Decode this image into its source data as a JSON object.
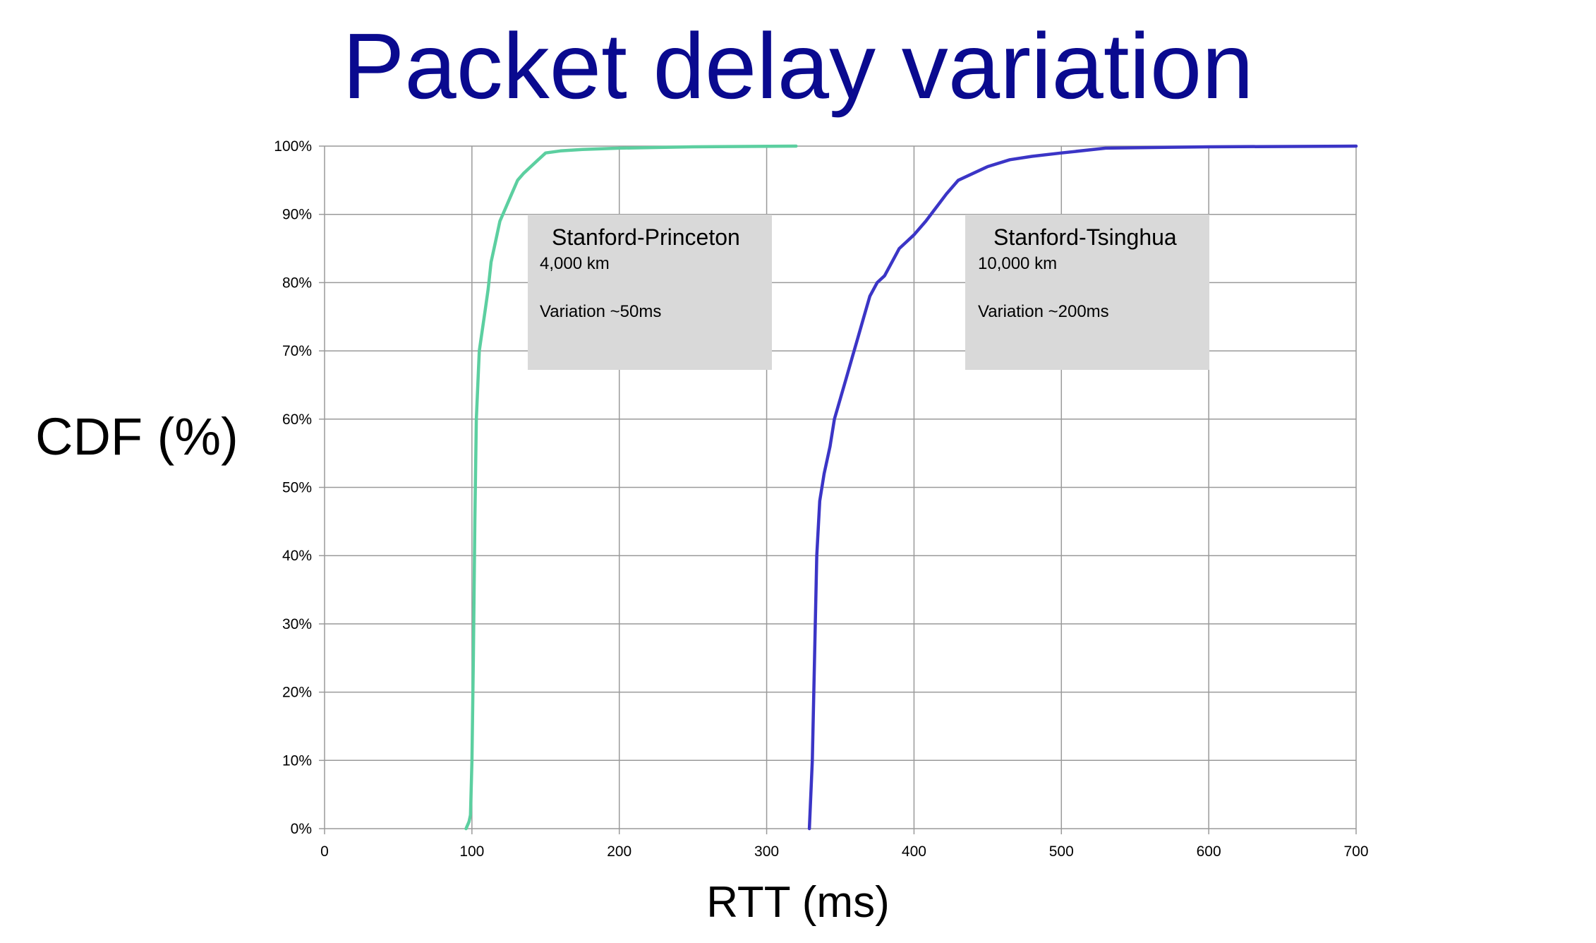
{
  "slide": {
    "title": "Packet delay variation",
    "ylabel": "CDF (%)",
    "xlabel": "RTT (ms)"
  },
  "colors": {
    "title": "#0a0a8f",
    "series1": "#5ccfa0",
    "series2": "#3b35c6",
    "grid": "#9a9a9a",
    "box": "#d9d9d9"
  },
  "annotations": [
    {
      "title": "Stanford-Princeton",
      "line1": "4,000 km",
      "line2": "Variation ~50ms"
    },
    {
      "title": "Stanford-Tsinghua",
      "line1": "10,000 km",
      "line2": "Variation ~200ms"
    }
  ],
  "chart_data": {
    "type": "line",
    "title": "Packet delay variation",
    "xlabel": "RTT (ms)",
    "ylabel": "CDF (%)",
    "xlim": [
      0,
      700
    ],
    "ylim": [
      0,
      100
    ],
    "x_ticks": [
      "0",
      "100",
      "200",
      "300",
      "400",
      "500",
      "600",
      "700"
    ],
    "y_ticks": [
      "0%",
      "10%",
      "20%",
      "30%",
      "40%",
      "50%",
      "60%",
      "70%",
      "80%",
      "90%",
      "100%"
    ],
    "grid": true,
    "series": [
      {
        "points": [
          [
            96,
            0
          ],
          [
            98,
            1
          ],
          [
            99,
            2
          ],
          [
            100,
            10
          ],
          [
            101,
            25
          ],
          [
            102,
            45
          ],
          [
            103,
            60
          ],
          [
            104,
            65
          ],
          [
            105,
            70
          ],
          [
            107,
            73
          ],
          [
            109,
            76
          ],
          [
            111,
            79
          ],
          [
            113,
            83
          ],
          [
            116,
            86
          ],
          [
            119,
            89
          ],
          [
            123,
            91
          ],
          [
            127,
            93
          ],
          [
            131,
            95
          ],
          [
            135,
            96
          ],
          [
            140,
            97
          ],
          [
            145,
            98
          ],
          [
            150,
            99
          ],
          [
            160,
            99.3
          ],
          [
            175,
            99.5
          ],
          [
            200,
            99.7
          ],
          [
            250,
            99.9
          ],
          [
            320,
            100
          ]
        ]
      },
      {
        "points": [
          [
            329,
            0
          ],
          [
            331,
            10
          ],
          [
            332,
            20
          ],
          [
            333,
            30
          ],
          [
            334,
            40
          ],
          [
            336,
            48
          ],
          [
            339,
            52
          ],
          [
            343,
            56
          ],
          [
            346,
            60
          ],
          [
            350,
            63
          ],
          [
            354,
            66
          ],
          [
            358,
            69
          ],
          [
            362,
            72
          ],
          [
            366,
            75
          ],
          [
            370,
            78
          ],
          [
            375,
            80
          ],
          [
            380,
            81
          ],
          [
            385,
            83
          ],
          [
            390,
            85
          ],
          [
            395,
            86
          ],
          [
            400,
            87
          ],
          [
            408,
            89
          ],
          [
            415,
            91
          ],
          [
            422,
            93
          ],
          [
            430,
            95
          ],
          [
            440,
            96
          ],
          [
            450,
            97
          ],
          [
            465,
            98
          ],
          [
            480,
            98.5
          ],
          [
            500,
            99
          ],
          [
            530,
            99.7
          ],
          [
            600,
            99.9
          ],
          [
            700,
            100
          ]
        ]
      }
    ]
  }
}
